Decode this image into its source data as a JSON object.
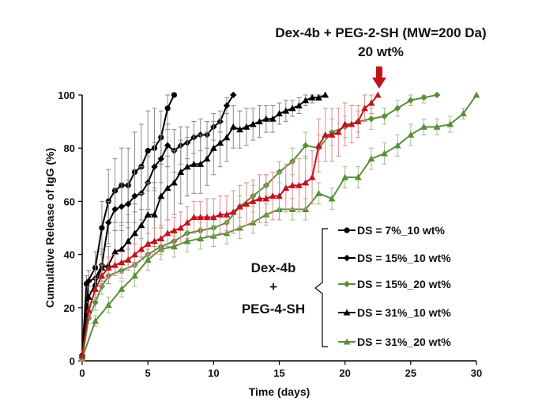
{
  "chart_data": {
    "type": "line",
    "title": "",
    "xlabel": "Time (days)",
    "ylabel": "Cumulative Release of IgG (%)",
    "xlim": [
      0,
      30
    ],
    "ylim": [
      0,
      100
    ],
    "xticks": [
      "0",
      "5",
      "10",
      "15",
      "20",
      "25",
      "30"
    ],
    "yticks": [
      "0",
      "20",
      "40",
      "60",
      "80",
      "100"
    ],
    "grid": false,
    "legend_position": "right",
    "group_label": [
      "Dex-4b",
      "+",
      "PEG-4-SH"
    ],
    "annotation": {
      "lines": [
        "Dex-4b + PEG-2-SH (MW=200 Da)",
        "20 wt%"
      ],
      "arrow_x": 22.6
    },
    "series": [
      {
        "name": "DS = 7%_10 wt%",
        "color": "#000000",
        "marker": "circle",
        "x": [
          0,
          0.33,
          1,
          1.5,
          2,
          2.5,
          3,
          3.5,
          4,
          4.5,
          5,
          5.5,
          6,
          6.5,
          7
        ],
        "y": [
          2,
          29,
          35,
          50,
          60,
          64,
          66,
          66,
          71,
          73,
          79,
          80,
          84,
          95,
          100
        ],
        "err": [
          2,
          3,
          6,
          10,
          12,
          12,
          14,
          14,
          15,
          16,
          15,
          15,
          10,
          8,
          0
        ]
      },
      {
        "name": "DS = 15%_10 wt%",
        "color": "#000000",
        "marker": "diamond",
        "x": [
          0,
          0.5,
          1,
          1.5,
          2,
          2.5,
          3,
          3.5,
          4,
          4.5,
          5,
          5.5,
          6,
          6.5,
          7,
          7.5,
          8,
          8.5,
          9,
          9.5,
          10,
          10.5,
          11,
          11.5
        ],
        "y": [
          2,
          30,
          31,
          36,
          52,
          57,
          58,
          59,
          62,
          63,
          67,
          73,
          76,
          81,
          79,
          81,
          82,
          84,
          85,
          85,
          88,
          90,
          96,
          100
        ],
        "err": [
          2,
          4,
          5,
          6,
          8,
          8,
          9,
          9,
          10,
          10,
          10,
          9,
          9,
          8,
          8,
          7,
          6,
          6,
          6,
          5,
          5,
          4,
          3,
          0
        ]
      },
      {
        "name": "DS = 15%_20 wt%",
        "color": "#5a8f3a",
        "marker": "diamond",
        "x": [
          0,
          0.5,
          1,
          1.5,
          2,
          3,
          4,
          5,
          6,
          7,
          8,
          9,
          10,
          11,
          12,
          13,
          14,
          15,
          16,
          17,
          18,
          19,
          20,
          21,
          22,
          23,
          24,
          25,
          26,
          27
        ],
        "y": [
          1,
          16,
          22,
          28,
          32,
          34,
          36,
          40,
          43,
          45,
          48,
          49,
          50,
          52,
          58,
          62,
          66,
          71,
          75,
          81,
          80,
          86,
          88,
          90,
          91,
          92,
          95,
          98,
          99,
          100
        ],
        "err": [
          1,
          2,
          3,
          3,
          3,
          3,
          3,
          3,
          3,
          3,
          3,
          3,
          3,
          3,
          4,
          4,
          4,
          4,
          5,
          5,
          5,
          5,
          4,
          4,
          4,
          3,
          3,
          2,
          2,
          0
        ]
      },
      {
        "name": "DS = 31%_10 wt%",
        "color": "#000000",
        "marker": "triangle",
        "x": [
          0,
          0.5,
          1,
          1.5,
          2,
          2.5,
          3,
          3.5,
          4,
          4.5,
          5,
          5.5,
          6,
          6.5,
          7,
          7.5,
          8,
          8.5,
          9,
          9.5,
          10,
          10.5,
          11,
          11.5,
          12,
          12.5,
          13,
          13.5,
          14,
          14.5,
          15,
          15.5,
          16,
          16.5,
          17,
          17.5,
          18,
          18.5
        ],
        "y": [
          2,
          24,
          29,
          35,
          36,
          41,
          42,
          45,
          48,
          51,
          55,
          55,
          62,
          65,
          67,
          71,
          73,
          74,
          74,
          76,
          80,
          82,
          84,
          88,
          87,
          88,
          89,
          90,
          91,
          91,
          93,
          94,
          95,
          96,
          98,
          99,
          99,
          100
        ],
        "err": [
          2,
          4,
          5,
          6,
          7,
          8,
          9,
          10,
          11,
          12,
          12,
          12,
          12,
          12,
          12,
          12,
          11,
          11,
          11,
          10,
          10,
          9,
          9,
          8,
          7,
          7,
          6,
          6,
          5,
          5,
          4,
          4,
          3,
          3,
          2,
          2,
          1,
          0
        ]
      },
      {
        "name": "DS = 31%_20 wt%",
        "color": "#5a8f3a",
        "marker": "triangle",
        "x": [
          0,
          1,
          2,
          3,
          4,
          5,
          6,
          7,
          8,
          9,
          10,
          11,
          12,
          13,
          14,
          15,
          16,
          17,
          18,
          19,
          20,
          21,
          22,
          23,
          24,
          25,
          26,
          27,
          28,
          29,
          30
        ],
        "y": [
          1,
          15,
          21,
          27,
          32,
          38,
          42,
          43,
          45,
          46,
          47,
          48,
          50,
          52,
          55,
          57,
          57,
          57,
          63,
          61,
          69,
          69,
          76,
          78,
          81,
          85,
          88,
          88,
          89,
          93,
          100
        ],
        "err": [
          1,
          2,
          3,
          3,
          4,
          4,
          4,
          4,
          4,
          4,
          4,
          4,
          4,
          4,
          4,
          4,
          4,
          4,
          4,
          4,
          4,
          4,
          4,
          4,
          4,
          4,
          3,
          3,
          3,
          2,
          0
        ]
      },
      {
        "name": "",
        "color": "#c0141c",
        "marker": "triangle",
        "x": [
          0,
          0.5,
          1,
          1.5,
          2,
          2.5,
          3,
          3.5,
          4,
          4.5,
          5,
          5.5,
          6,
          6.5,
          7,
          7.5,
          8,
          8.5,
          9,
          9.5,
          10,
          10.5,
          11,
          11.5,
          12,
          12.5,
          13,
          13.5,
          14,
          14.5,
          15,
          15.5,
          16,
          16.5,
          17,
          17.5,
          18,
          18.5,
          19,
          19.5,
          20,
          20.5,
          21,
          21.5,
          22,
          22.5
        ],
        "y": [
          2,
          19,
          27,
          32,
          35,
          36,
          37,
          38,
          40,
          42,
          44,
          45,
          46,
          48,
          49,
          50,
          52,
          54,
          54,
          54,
          54,
          55,
          55,
          56,
          58,
          59,
          60,
          61,
          61,
          62,
          62,
          65,
          66,
          66,
          67,
          69,
          81,
          85,
          85,
          86,
          89,
          89,
          90,
          95,
          97,
          100
        ],
        "err": [
          2,
          3,
          4,
          4,
          4,
          4,
          4,
          4,
          4,
          4,
          4,
          5,
          5,
          5,
          5,
          6,
          6,
          6,
          6,
          7,
          7,
          7,
          7,
          8,
          8,
          8,
          8,
          9,
          9,
          9,
          9,
          9,
          9,
          10,
          10,
          10,
          10,
          10,
          10,
          9,
          8,
          7,
          6,
          5,
          4,
          0
        ]
      }
    ]
  }
}
